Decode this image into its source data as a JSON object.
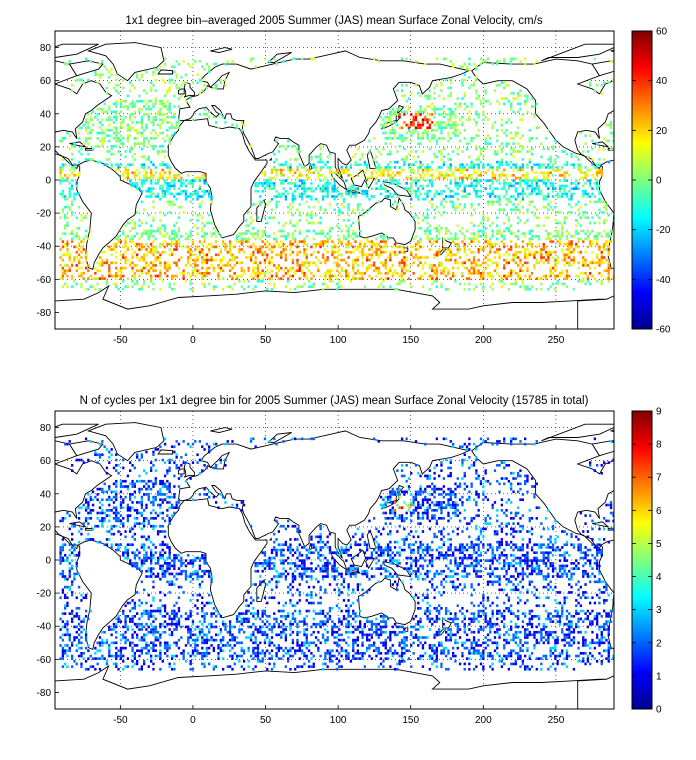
{
  "figure": {
    "panels": [
      {
        "id": "velocity",
        "title": "1x1 degree bin–averaged 2005 Summer (JAS) mean Surface Zonal Velocity, cm/s",
        "xticks": [
          -50,
          0,
          50,
          100,
          150,
          200,
          250
        ],
        "yticks": [
          80,
          60,
          40,
          20,
          0,
          -20,
          -40,
          -60,
          -80
        ],
        "xlim": [
          -95,
          290
        ],
        "ylim": [
          -90,
          90
        ],
        "colorbar": {
          "min": -60,
          "max": 60,
          "ticks": [
            60,
            40,
            20,
            0,
            -20,
            -40,
            -60
          ],
          "colormap": "jet"
        }
      },
      {
        "id": "cycles",
        "title": "N of cycles per 1x1 degree bin for 2005 Summer (JAS) mean Surface Zonal Velocity (15785 in total)",
        "xticks": [
          -50,
          0,
          50,
          100,
          150,
          200,
          250
        ],
        "yticks": [
          80,
          60,
          40,
          20,
          0,
          -20,
          -40,
          -60,
          -80
        ],
        "xlim": [
          -95,
          290
        ],
        "ylim": [
          -90,
          90
        ],
        "colorbar": {
          "min": 0,
          "max": 9,
          "ticks": [
            9,
            8,
            7,
            6,
            5,
            4,
            3,
            2,
            1,
            0
          ],
          "colormap": "jet"
        }
      }
    ]
  }
}
